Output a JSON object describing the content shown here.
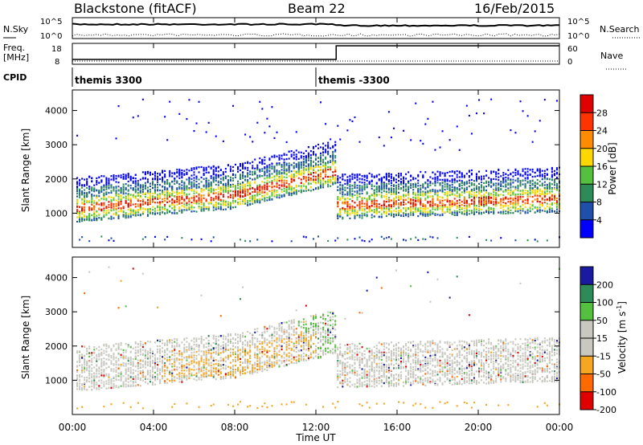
{
  "header": {
    "station": "Blackstone (fitACF)",
    "beam": "Beam 22",
    "date": "16/Feb/2015"
  },
  "noise_panel": {
    "left_label": "N.Sky",
    "right_label": "N.Search",
    "y_ticks_left": [
      "10^5",
      "10^0"
    ],
    "y_ticks_right": [
      "10^5",
      "10^0"
    ]
  },
  "freq_panel": {
    "left_label_line1": "Freq.",
    "left_label_line2": "[MHz]",
    "right_label": "Nave",
    "y_ticks_left": [
      "18",
      "8"
    ],
    "y_ticks_right": [
      "60",
      "0"
    ],
    "step_time_hours": 13
  },
  "cpid_panel": {
    "label": "CPID",
    "segments": [
      {
        "label": "themis 3300",
        "start_hours": 0
      },
      {
        "label": "themis -3300",
        "start_hours": 12
      }
    ]
  },
  "time_axis": {
    "label": "Time UT",
    "ticks": [
      "00:00",
      "04:00",
      "08:00",
      "12:00",
      "16:00",
      "20:00",
      "00:00"
    ],
    "range_hours": [
      0,
      24
    ]
  },
  "chart_data": [
    {
      "type": "heatmap",
      "title": "Power",
      "ylabel": "Slant Range [km]",
      "xlabel": "Time UT",
      "ylim": [
        0,
        4600
      ],
      "yticks": [
        "1000",
        "2000",
        "3000",
        "4000"
      ],
      "colorbar_label": "Power [dB]",
      "colorbar_ticks": [
        "4",
        "8",
        "12",
        "16",
        "20",
        "24",
        "28"
      ],
      "colorbar_range": [
        0,
        32
      ],
      "colors": [
        "#0000ff",
        "#1f4fa8",
        "#2e8b57",
        "#55c040",
        "#ffd700",
        "#ff8c00",
        "#ff3300",
        "#e00000"
      ],
      "features": [
        {
          "name": "main backscatter band",
          "t_start": 0.2,
          "t_end": 12.8,
          "range_center": 1300,
          "note": "strong low-range band rising toward 08:00"
        },
        {
          "name": "post-noon band",
          "t_start": 13,
          "t_end": 24,
          "range_center": 1400
        },
        {
          "name": "upper patches",
          "t_start": 8,
          "t_end": 12,
          "range_center": 2200
        }
      ]
    },
    {
      "type": "heatmap",
      "title": "Velocity",
      "ylabel": "Slant Range [km]",
      "xlabel": "Time UT",
      "ylim": [
        0,
        4600
      ],
      "yticks": [
        "1000",
        "2000",
        "3000",
        "4000"
      ],
      "colorbar_label": "Velocity [m s-1]",
      "colorbar_label_main": "Velocity [",
      "colorbar_label_unit": "m s",
      "colorbar_label_exp": "-1",
      "colorbar_label_end": "]",
      "colorbar_ticks": [
        "200",
        "100",
        "50",
        "15",
        "-15",
        "-50",
        "-100",
        "-200"
      ],
      "colors": [
        "#1a1aa0",
        "#2e8b57",
        "#55c040",
        "#c8c8c0",
        "#c8c8c0",
        "#f5a623",
        "#ff6a00",
        "#e00000"
      ]
    }
  ]
}
